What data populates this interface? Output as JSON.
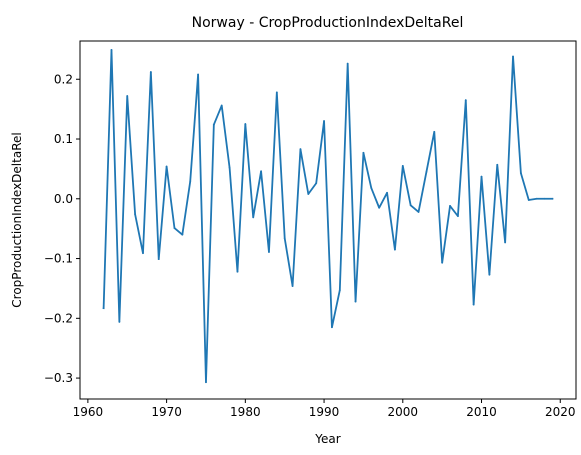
{
  "chart_data": {
    "type": "line",
    "title": "Norway - CropProductionIndexDeltaRel",
    "xlabel": "Year",
    "ylabel": "CropProductionIndexDeltaRel",
    "xlim": [
      1959,
      2022
    ],
    "ylim": [
      -0.335,
      0.264
    ],
    "xticks": [
      1960,
      1970,
      1980,
      1990,
      2000,
      2010,
      2020
    ],
    "xtick_labels": [
      "1960",
      "1970",
      "1980",
      "1990",
      "2000",
      "2010",
      "2020"
    ],
    "yticks": [
      0.2,
      0.1,
      0.0,
      -0.1,
      -0.2,
      -0.3
    ],
    "ytick_labels": [
      "0.2",
      "0.1",
      "0.0",
      "−0.1",
      "−0.2",
      "−0.3"
    ],
    "grid": false,
    "series": [
      {
        "color": "#1f77b4",
        "x": [
          1962,
          1963,
          1964,
          1965,
          1966,
          1967,
          1968,
          1969,
          1970,
          1971,
          1972,
          1973,
          1974,
          1975,
          1976,
          1977,
          1978,
          1979,
          1980,
          1981,
          1982,
          1983,
          1984,
          1985,
          1986,
          1987,
          1988,
          1989,
          1990,
          1991,
          1992,
          1993,
          1994,
          1995,
          1996,
          1997,
          1998,
          1999,
          2000,
          2001,
          2002,
          2003,
          2004,
          2005,
          2006,
          2007,
          2008,
          2009,
          2010,
          2011,
          2012,
          2013,
          2014,
          2015,
          2016,
          2017,
          2018,
          2019
        ],
        "y": [
          -0.183,
          0.249,
          -0.206,
          0.172,
          -0.026,
          -0.091,
          0.212,
          -0.101,
          0.054,
          -0.049,
          -0.06,
          0.029,
          0.208,
          -0.307,
          0.124,
          0.156,
          0.052,
          -0.122,
          0.125,
          -0.031,
          0.046,
          -0.089,
          0.178,
          -0.066,
          -0.146,
          0.083,
          0.008,
          0.026,
          0.13,
          -0.215,
          -0.153,
          0.226,
          -0.172,
          0.077,
          0.018,
          -0.015,
          0.01,
          -0.085,
          0.055,
          -0.011,
          -0.022,
          0.045,
          0.112,
          -0.107,
          -0.012,
          -0.029,
          0.165,
          -0.177,
          0.037,
          -0.127,
          0.057,
          -0.073,
          0.238,
          0.043,
          -0.002,
          0.0,
          0.0,
          0.0
        ]
      }
    ]
  }
}
